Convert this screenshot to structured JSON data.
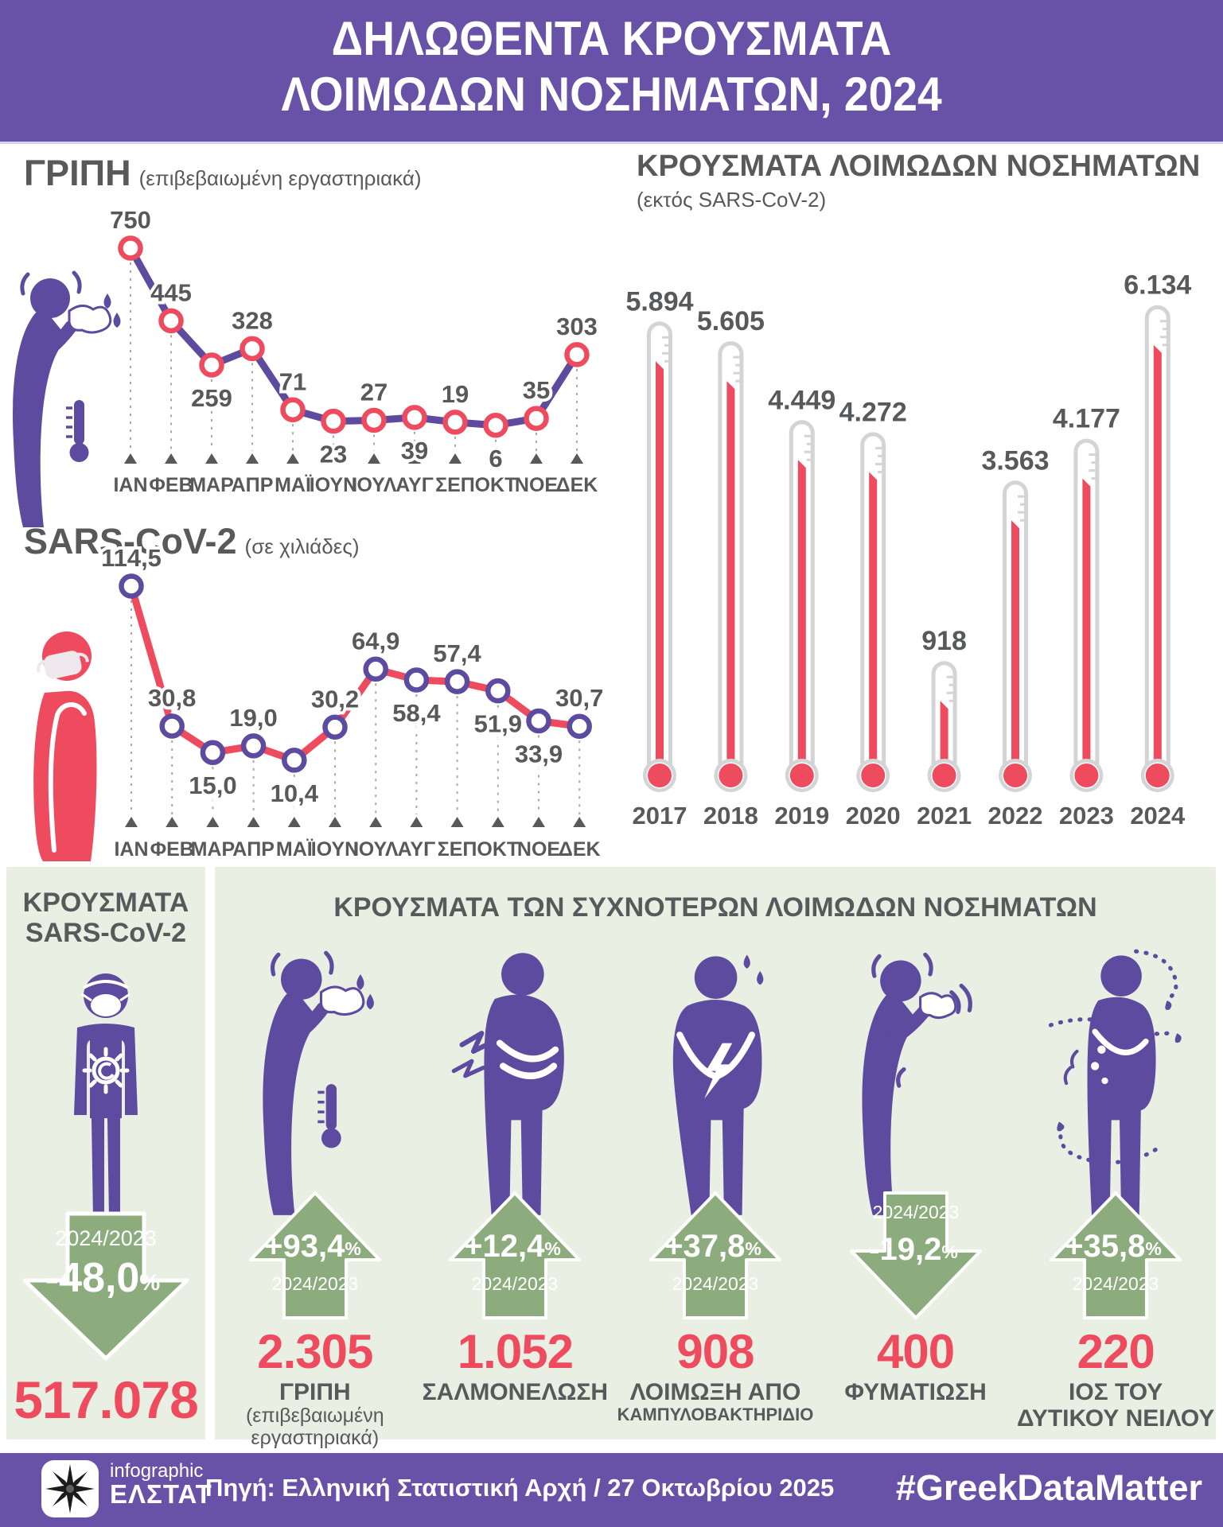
{
  "header": {
    "line1": "ΔΗΛΩΘΕΝΤΑ ΚΡΟΥΣΜΑΤΑ",
    "line2": "ΛΟΙΜΩΔΩΝ ΝΟΣΗΜΑΤΩΝ, 2024"
  },
  "colors": {
    "purple_band": "#6852a8",
    "pictogram_purple": "#5c4b9f",
    "red": "#ee4b5e",
    "gray_text": "#58595b",
    "light_gray": "#d3d4d5",
    "panel_green": "#e9efe2",
    "arrow_green": "#8dac7e",
    "mask_white": "#efe9ee"
  },
  "chart_data": [
    {
      "id": "flu",
      "type": "line",
      "title": "ΓΡΙΠΗ",
      "subtitle": "(επιβεβαιωμένη εργαστηριακά)",
      "icon": "sneezing-person",
      "categories": [
        "ΙΑΝ",
        "ΦΕΒ",
        "ΜΑΡ",
        "ΑΠΡ",
        "ΜΑΪ",
        "ΙΟΥΝ",
        "ΙΟΥΛ",
        "ΑΥΓ",
        "ΣΕΠ",
        "ΟΚΤ",
        "ΝΟΕ",
        "ΔΕΚ"
      ],
      "values": [
        750,
        445,
        259,
        328,
        71,
        23,
        27,
        39,
        19,
        6,
        35,
        303
      ],
      "display": [
        "750",
        "445",
        "259",
        "328",
        "71",
        "23",
        "27",
        "39",
        "19",
        "6",
        "35",
        "303"
      ],
      "label_side": [
        "above",
        "above",
        "below",
        "above",
        "above",
        "below",
        "above",
        "below",
        "above",
        "below",
        "above",
        "above"
      ],
      "line_color": "#5c4b9f",
      "marker_ring": "#ee4b5e",
      "ylim": [
        0,
        750
      ],
      "grid": false,
      "legend": "none"
    },
    {
      "id": "sars",
      "type": "line",
      "title": "SARS-CoV-2",
      "subtitle": "(σε χιλιάδες)",
      "icon": "masked-person",
      "categories": [
        "ΙΑΝ",
        "ΦΕΒ",
        "ΜΑΡ",
        "ΑΠΡ",
        "ΜΑΪ",
        "ΙΟΥΝ",
        "ΙΟΥΛ",
        "ΑΥΓ",
        "ΣΕΠ",
        "ΟΚΤ",
        "ΝΟΕ",
        "ΔΕΚ"
      ],
      "values": [
        114.5,
        30.8,
        15.0,
        19.0,
        10.4,
        30.2,
        64.9,
        58.4,
        57.4,
        51.9,
        33.9,
        30.7
      ],
      "display": [
        "114,5",
        "30,8",
        "15,0",
        "19,0",
        "10,4",
        "30,2",
        "64,9",
        "58,4",
        "57,4",
        "51,9",
        "33,9",
        "30,7"
      ],
      "label_side": [
        "above",
        "above",
        "below",
        "above",
        "below",
        "above",
        "above",
        "below",
        "above",
        "below",
        "below",
        "above"
      ],
      "line_color": "#ee4b5e",
      "marker_ring": "#5c4b9f",
      "ylim": [
        0,
        114.5
      ],
      "grid": false,
      "legend": "none"
    },
    {
      "id": "thermo",
      "type": "bar",
      "title": "ΚΡΟΥΣΜΑΤΑ ΛΟΙΜΩΔΩΝ ΝΟΣΗΜΑΤΩΝ",
      "subtitle": "(εκτός SARS-CoV-2)",
      "categories": [
        "2017",
        "2018",
        "2019",
        "2020",
        "2021",
        "2022",
        "2023",
        "2024"
      ],
      "values": [
        5894,
        5605,
        4449,
        4272,
        918,
        3563,
        4177,
        6134
      ],
      "display": [
        "5.894",
        "5.605",
        "4.449",
        "4.272",
        "918",
        "3.563",
        "4.177",
        "6.134"
      ],
      "bar_style": "thermometer",
      "bar_color": "#ee4b5e",
      "ylim": [
        0,
        6134
      ],
      "grid": false,
      "legend": "none"
    }
  ],
  "bottom_left": {
    "title1": "ΚΡΟΥΣΜΑΤΑ",
    "title2": "SARS-CoV-2",
    "icon": "covid-person",
    "direction": "down",
    "period": "2024/2023",
    "change": "-48,0",
    "change_unit": "%",
    "value": "517.078"
  },
  "bottom_right": {
    "title": "ΚΡΟΥΣΜΑΤΑ ΤΩΝ ΣΥΧΝΟΤΕΡΩΝ ΛΟΙΜΩΔΩΝ ΝΟΣΗΜΑΤΩΝ",
    "items": [
      {
        "label": "ΓΡΙΠΗ",
        "sublabel": "(επιβεβαιωμένη εργαστηριακά)",
        "sub_style": "regular",
        "value": "2.305",
        "direction": "up",
        "change": "+93,4",
        "change_unit": "%",
        "period": "2024/2023",
        "icon": "sneezing-person"
      },
      {
        "label": "ΣΑΛΜΟΝΕΛΩΣΗ",
        "sublabel": "",
        "sub_style": "regular",
        "value": "1.052",
        "direction": "up",
        "change": "+12,4",
        "change_unit": "%",
        "period": "2024/2023",
        "icon": "stomach-pain-person"
      },
      {
        "label": "ΛΟΙΜΩΞΗ ΑΠΟ",
        "sublabel": "ΚΑΜΠΥΛΟΒΑΚΤΗΡΙΔΙΟ",
        "sub_style": "bold",
        "value": "908",
        "direction": "up",
        "change": "+37,8",
        "change_unit": "%",
        "period": "2024/2023",
        "icon": "belly-lightning-person"
      },
      {
        "label": "ΦΥΜΑΤΙΩΣΗ",
        "sublabel": "",
        "sub_style": "regular",
        "value": "400",
        "direction": "down",
        "change": "-19,2",
        "change_unit": "%",
        "period": "2024/2023",
        "icon": "coughing-person"
      },
      {
        "label": "ΙΟΣ ΤΟΥ",
        "sublabel": "ΔΥΤΙΚΟΥ ΝΕΙΛΟΥ",
        "sub_style": "bold-large",
        "value": "220",
        "direction": "up",
        "change": "+35,8",
        "change_unit": "%",
        "period": "2024/2023",
        "icon": "mosquito-person"
      }
    ]
  },
  "footer": {
    "logo_icon": "compass-star-icon",
    "brand_top": "infographic",
    "brand_bottom": "ΕΛΣΤΑΤ",
    "source": "Πηγή: Ελληνική Στατιστική Αρχή / 27 Οκτωβρίου 2025",
    "hashtag": "#GreekDataMatter"
  }
}
